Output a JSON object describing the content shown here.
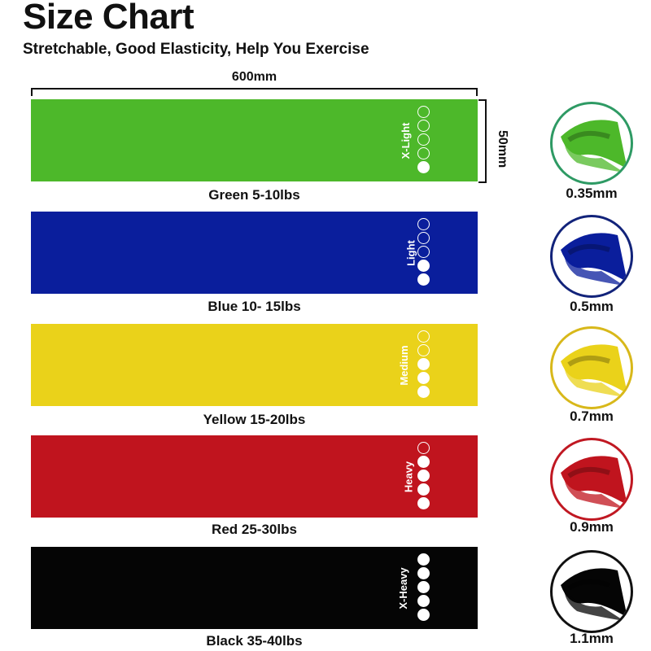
{
  "title": "Size Chart",
  "subtitle": "Stretchable, Good Elasticity, Help You Exercise",
  "dimensions": {
    "length": "600mm",
    "width": "50mm"
  },
  "bands": [
    {
      "color": "#4db82a",
      "level": "X-Light",
      "resistance_level": 1,
      "label": "Green 5-10lbs",
      "thickness": "0.35mm",
      "border": "#2e9a64"
    },
    {
      "color": "#0a1e9c",
      "level": "Light",
      "resistance_level": 2,
      "label": "Blue 10- 15lbs",
      "thickness": "0.5mm",
      "border": "#12237a"
    },
    {
      "color": "#ead21a",
      "level": "Medium",
      "resistance_level": 3,
      "label": "Yellow 15-20lbs",
      "thickness": "0.7mm",
      "border": "#d8b81a"
    },
    {
      "color": "#c0141e",
      "level": "Heavy",
      "resistance_level": 4,
      "label": "Red 25-30lbs",
      "thickness": "0.9mm",
      "border": "#c01822"
    },
    {
      "color": "#050505",
      "level": "X-Heavy",
      "resistance_level": 5,
      "label": "Black 35-40lbs",
      "thickness": "1.1mm",
      "border": "#111111"
    }
  ]
}
